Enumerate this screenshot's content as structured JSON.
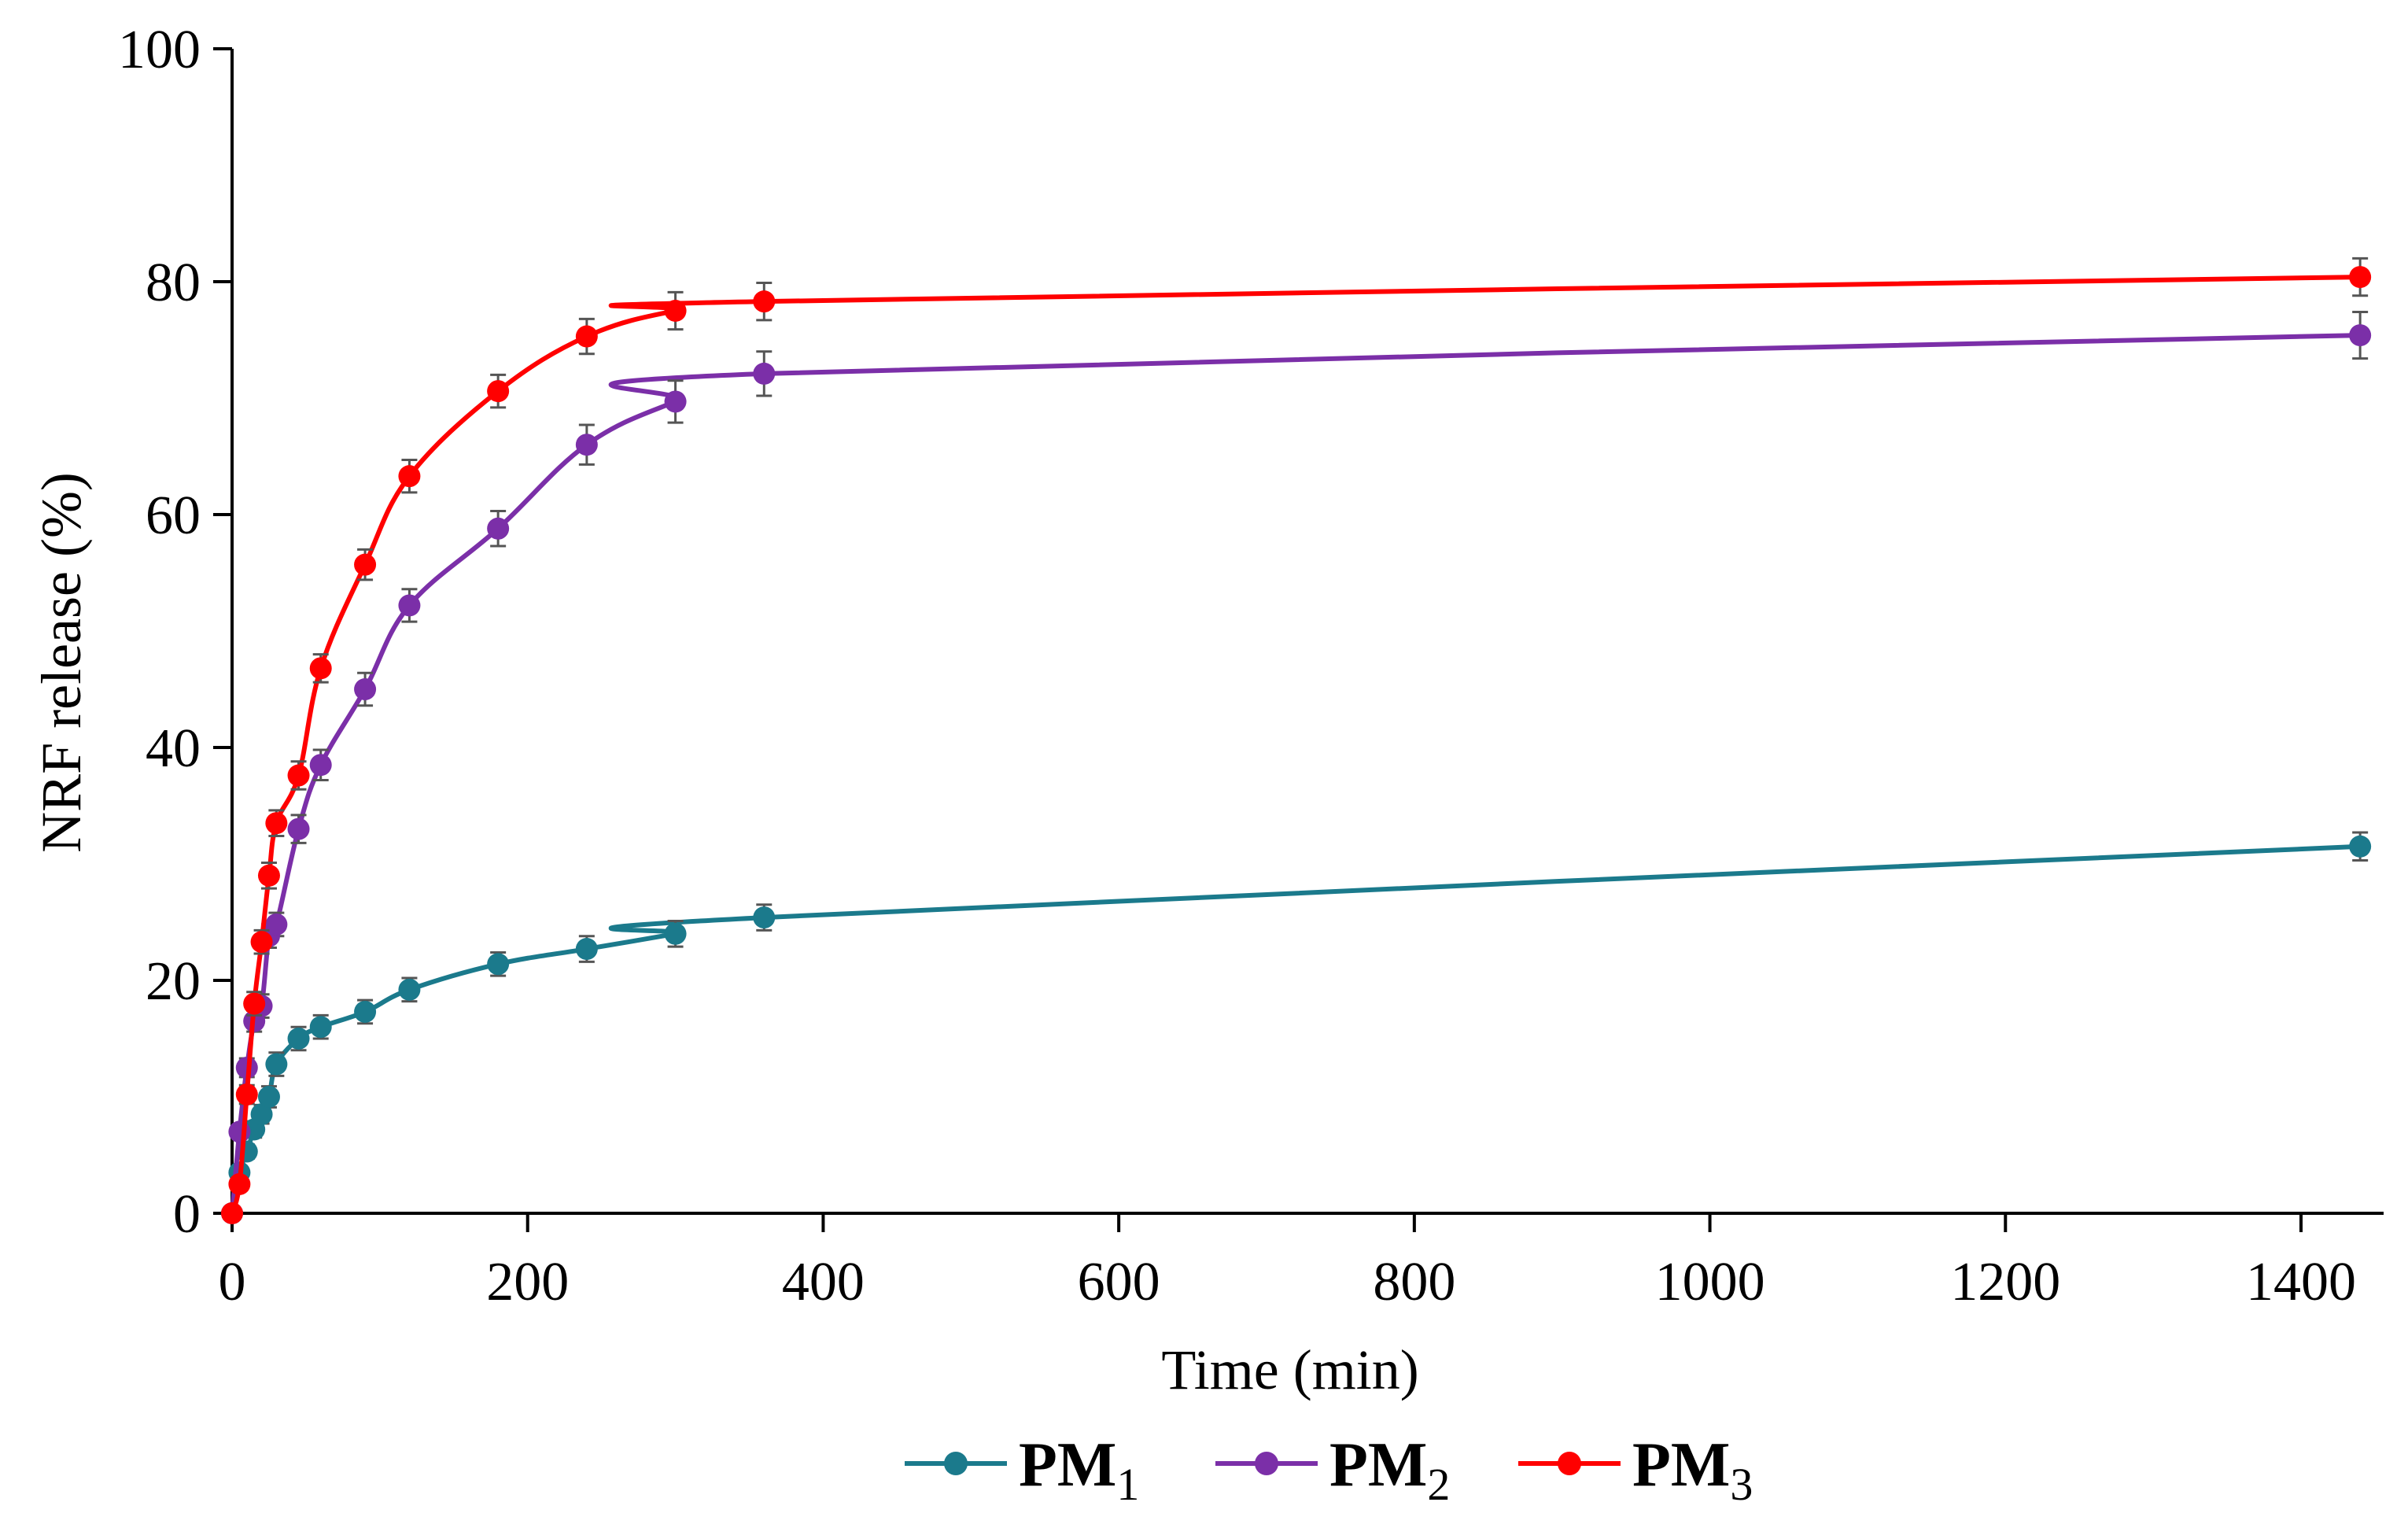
{
  "chart_data": {
    "type": "line",
    "title": "",
    "xlabel": "Time (min)",
    "ylabel": "NRF release (%)",
    "xlim": [
      0,
      1500
    ],
    "ylim": [
      0,
      100
    ],
    "xticks": [
      0,
      200,
      400,
      600,
      800,
      1000,
      1200,
      1400
    ],
    "yticks": [
      0,
      20,
      40,
      60,
      80,
      100
    ],
    "grid": false,
    "legend_position": "bottom-center",
    "x": [
      0,
      5,
      10,
      15,
      20,
      25,
      30,
      45,
      60,
      90,
      120,
      180,
      240,
      300,
      360,
      1440
    ],
    "series": [
      {
        "name": "PM1",
        "label_main": "PM",
        "label_sub": "1",
        "color": "#1b7a8c",
        "values": [
          0,
          3.5,
          5.3,
          7.2,
          8.5,
          10.0,
          12.8,
          15.0,
          16.0,
          17.3,
          19.2,
          21.4,
          22.7,
          24.0,
          25.4,
          31.5
        ],
        "errors": [
          0.3,
          0.4,
          0.6,
          0.7,
          0.8,
          0.9,
          1.0,
          1.0,
          1.0,
          1.0,
          1.0,
          1.0,
          1.1,
          1.1,
          1.1,
          1.2
        ]
      },
      {
        "name": "PM2",
        "label_main": "PM",
        "label_sub": "2",
        "color": "#7b2fa8",
        "values": [
          0,
          7.0,
          12.5,
          16.5,
          17.8,
          23.8,
          24.8,
          33.0,
          38.5,
          45.0,
          52.2,
          58.8,
          66.0,
          69.7,
          72.1,
          75.4
        ],
        "errors": [
          0.3,
          0.6,
          0.8,
          0.9,
          1.0,
          1.0,
          1.0,
          1.2,
          1.3,
          1.4,
          1.4,
          1.5,
          1.7,
          1.8,
          1.9,
          2.0
        ]
      },
      {
        "name": "PM3",
        "label_main": "PM",
        "label_sub": "3",
        "color": "#ff0000",
        "values": [
          0,
          2.5,
          10.2,
          18.0,
          23.3,
          29.0,
          33.5,
          37.6,
          46.8,
          55.7,
          63.3,
          70.6,
          75.3,
          77.5,
          78.3,
          80.4
        ],
        "errors": [
          0.3,
          0.5,
          0.8,
          1.0,
          1.0,
          1.1,
          1.1,
          1.2,
          1.2,
          1.3,
          1.4,
          1.4,
          1.5,
          1.6,
          1.6,
          1.6
        ]
      }
    ]
  }
}
